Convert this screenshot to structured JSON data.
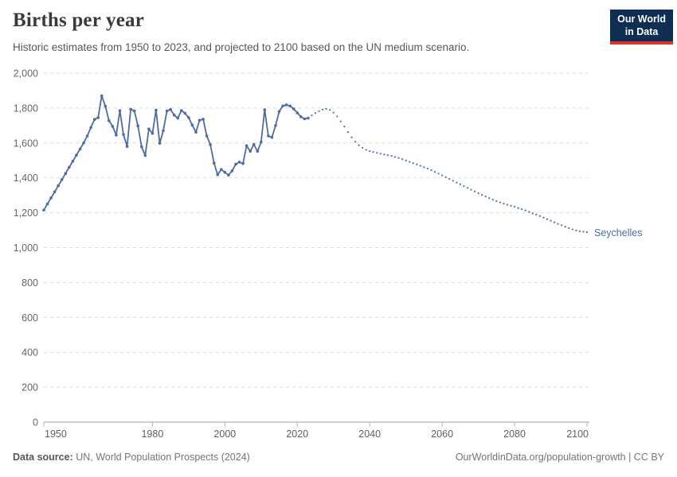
{
  "header": {
    "title": "Births per year",
    "subtitle": "Historic estimates from 1950 to 2023, and projected to 2100 based on the UN medium scenario."
  },
  "logo": {
    "line1": "Our World",
    "line2": "in Data",
    "bg_color": "#0f2e52",
    "accent_color": "#d8352c"
  },
  "chart_data": {
    "type": "line",
    "title": "Births per year",
    "entity_label": "Seychelles",
    "line_color": "#4e6ba3",
    "grid_color": "#dcdcdc",
    "axis_color": "#9e9e9e",
    "tick_color": "#b0b0b0",
    "y_label_color": "#666666",
    "x_label_color": "#5f5f5f",
    "xlim": [
      1950,
      2100
    ],
    "ylim": [
      0,
      2000
    ],
    "grid": "horizontal-dashed",
    "legend_position": "line-end-label",
    "y_ticks": [
      {
        "value": 0,
        "label": "0"
      },
      {
        "value": 200,
        "label": "200"
      },
      {
        "value": 400,
        "label": "400"
      },
      {
        "value": 600,
        "label": "600"
      },
      {
        "value": 800,
        "label": "800"
      },
      {
        "value": 1000,
        "label": "1,000"
      },
      {
        "value": 1200,
        "label": "1,200"
      },
      {
        "value": 1400,
        "label": "1,400"
      },
      {
        "value": 1600,
        "label": "1,600"
      },
      {
        "value": 1800,
        "label": "1,800"
      },
      {
        "value": 2000,
        "label": "2,000"
      }
    ],
    "x_ticks": [
      1950,
      1980,
      2000,
      2020,
      2040,
      2060,
      2080,
      2100
    ],
    "series": [
      {
        "name": "historic estimates",
        "style": "solid-with-markers",
        "points": [
          [
            1950,
            1215
          ],
          [
            1951,
            1250
          ],
          [
            1952,
            1285
          ],
          [
            1953,
            1320
          ],
          [
            1954,
            1355
          ],
          [
            1955,
            1390
          ],
          [
            1956,
            1425
          ],
          [
            1957,
            1460
          ],
          [
            1958,
            1495
          ],
          [
            1959,
            1530
          ],
          [
            1960,
            1565
          ],
          [
            1961,
            1600
          ],
          [
            1962,
            1640
          ],
          [
            1963,
            1688
          ],
          [
            1964,
            1735
          ],
          [
            1965,
            1745
          ],
          [
            1966,
            1870
          ],
          [
            1967,
            1810
          ],
          [
            1968,
            1728
          ],
          [
            1969,
            1695
          ],
          [
            1970,
            1645
          ],
          [
            1971,
            1785
          ],
          [
            1972,
            1648
          ],
          [
            1973,
            1580
          ],
          [
            1974,
            1793
          ],
          [
            1975,
            1783
          ],
          [
            1976,
            1698
          ],
          [
            1977,
            1578
          ],
          [
            1978,
            1528
          ],
          [
            1979,
            1680
          ],
          [
            1980,
            1655
          ],
          [
            1981,
            1788
          ],
          [
            1982,
            1598
          ],
          [
            1983,
            1670
          ],
          [
            1984,
            1783
          ],
          [
            1985,
            1792
          ],
          [
            1986,
            1760
          ],
          [
            1987,
            1742
          ],
          [
            1988,
            1786
          ],
          [
            1989,
            1770
          ],
          [
            1990,
            1745
          ],
          [
            1991,
            1702
          ],
          [
            1992,
            1662
          ],
          [
            1993,
            1730
          ],
          [
            1994,
            1736
          ],
          [
            1995,
            1640
          ],
          [
            1996,
            1590
          ],
          [
            1997,
            1485
          ],
          [
            1998,
            1418
          ],
          [
            1999,
            1448
          ],
          [
            2000,
            1432
          ],
          [
            2001,
            1416
          ],
          [
            2002,
            1440
          ],
          [
            2003,
            1478
          ],
          [
            2004,
            1490
          ],
          [
            2005,
            1482
          ],
          [
            2006,
            1584
          ],
          [
            2007,
            1552
          ],
          [
            2008,
            1592
          ],
          [
            2009,
            1552
          ],
          [
            2010,
            1605
          ],
          [
            2011,
            1790
          ],
          [
            2012,
            1640
          ],
          [
            2013,
            1632
          ],
          [
            2014,
            1700
          ],
          [
            2015,
            1780
          ],
          [
            2016,
            1812
          ],
          [
            2017,
            1818
          ],
          [
            2018,
            1812
          ],
          [
            2019,
            1795
          ],
          [
            2020,
            1772
          ],
          [
            2021,
            1750
          ],
          [
            2022,
            1738
          ],
          [
            2023,
            1742
          ]
        ]
      },
      {
        "name": "UN medium scenario projection",
        "style": "dotted",
        "points": [
          [
            2024,
            1758
          ],
          [
            2025,
            1771
          ],
          [
            2026,
            1782
          ],
          [
            2027,
            1791
          ],
          [
            2028,
            1795
          ],
          [
            2029,
            1789
          ],
          [
            2030,
            1774
          ],
          [
            2031,
            1752
          ],
          [
            2032,
            1724
          ],
          [
            2033,
            1694
          ],
          [
            2034,
            1662
          ],
          [
            2035,
            1632
          ],
          [
            2036,
            1607
          ],
          [
            2037,
            1587
          ],
          [
            2038,
            1572
          ],
          [
            2039,
            1561
          ],
          [
            2040,
            1553
          ],
          [
            2041,
            1548
          ],
          [
            2042,
            1543
          ],
          [
            2043,
            1538
          ],
          [
            2044,
            1534
          ],
          [
            2045,
            1530
          ],
          [
            2046,
            1526
          ],
          [
            2047,
            1520
          ],
          [
            2048,
            1514
          ],
          [
            2049,
            1507
          ],
          [
            2050,
            1500
          ],
          [
            2051,
            1492
          ],
          [
            2052,
            1484
          ],
          [
            2053,
            1477
          ],
          [
            2054,
            1469
          ],
          [
            2055,
            1461
          ],
          [
            2056,
            1453
          ],
          [
            2057,
            1444
          ],
          [
            2058,
            1434
          ],
          [
            2059,
            1424
          ],
          [
            2060,
            1414
          ],
          [
            2061,
            1404
          ],
          [
            2062,
            1394
          ],
          [
            2063,
            1383
          ],
          [
            2064,
            1373
          ],
          [
            2065,
            1363
          ],
          [
            2066,
            1352
          ],
          [
            2067,
            1342
          ],
          [
            2068,
            1332
          ],
          [
            2069,
            1322
          ],
          [
            2070,
            1312
          ],
          [
            2071,
            1302
          ],
          [
            2072,
            1293
          ],
          [
            2073,
            1284
          ],
          [
            2074,
            1275
          ],
          [
            2075,
            1267
          ],
          [
            2076,
            1259
          ],
          [
            2077,
            1252
          ],
          [
            2078,
            1246
          ],
          [
            2079,
            1240
          ],
          [
            2080,
            1234
          ],
          [
            2081,
            1227
          ],
          [
            2082,
            1220
          ],
          [
            2083,
            1213
          ],
          [
            2084,
            1205
          ],
          [
            2085,
            1197
          ],
          [
            2086,
            1189
          ],
          [
            2087,
            1181
          ],
          [
            2088,
            1172
          ],
          [
            2089,
            1163
          ],
          [
            2090,
            1154
          ],
          [
            2091,
            1145
          ],
          [
            2092,
            1136
          ],
          [
            2093,
            1128
          ],
          [
            2094,
            1120
          ],
          [
            2095,
            1112
          ],
          [
            2096,
            1105
          ],
          [
            2097,
            1099
          ],
          [
            2098,
            1094
          ],
          [
            2099,
            1091
          ],
          [
            2100,
            1089
          ]
        ]
      }
    ]
  },
  "footer": {
    "source_label": "Data source:",
    "source_text": " UN, World Population Prospects (2024)",
    "link_text": "OurWorldinData.org/population-growth | CC BY"
  }
}
